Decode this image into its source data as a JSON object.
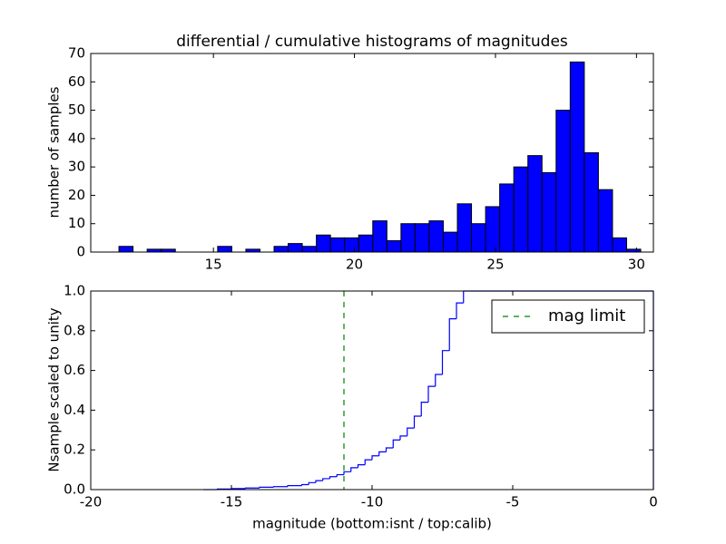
{
  "chart_data": [
    {
      "type": "histogram",
      "title": "differential / cumulative histograms of magnitudes",
      "ylabel": "number of samples",
      "bins": [
        11.65,
        12.15,
        12.65,
        13.15,
        13.65,
        14.15,
        14.65,
        15.15,
        15.65,
        16.15,
        16.65,
        17.15,
        17.65,
        18.15,
        18.65,
        19.15,
        19.65,
        20.15,
        20.65,
        21.15,
        21.65,
        22.15,
        22.65,
        23.15,
        23.65,
        24.15,
        24.65,
        25.15,
        25.65,
        26.15,
        26.65,
        27.15,
        27.65,
        28.15,
        28.65,
        29.15,
        29.65,
        30.15
      ],
      "values": [
        2,
        0,
        1,
        1,
        0,
        0,
        0,
        2,
        0,
        1,
        0,
        2,
        3,
        2,
        6,
        5,
        5,
        6,
        11,
        4,
        10,
        10,
        11,
        7,
        17,
        10,
        16,
        24,
        30,
        34,
        28,
        50,
        67,
        35,
        22,
        5,
        1
      ],
      "color": "#0000ff",
      "xlim": [
        10.65,
        30.6
      ],
      "xticks": [
        15,
        20,
        25,
        30
      ],
      "ylim": [
        0,
        70
      ],
      "yticks": [
        0,
        10,
        20,
        30,
        40,
        50,
        60,
        70
      ]
    },
    {
      "type": "step",
      "xlabel": "magnitude (bottom:isnt / top:calib)",
      "ylabel": "Nsample scaled to unity",
      "x": [
        -16,
        -15.5,
        -15,
        -14.5,
        -14,
        -13.5,
        -13,
        -12.5,
        -12.25,
        -12,
        -11.75,
        -11.5,
        -11.25,
        -11,
        -10.75,
        -10.5,
        -10.25,
        -10,
        -9.75,
        -9.5,
        -9.25,
        -9,
        -8.75,
        -8.5,
        -8.25,
        -8,
        -7.75,
        -7.5,
        -7.25,
        -7,
        -6.75,
        0
      ],
      "series": [
        {
          "values": [
            0.0,
            0.003,
            0.005,
            0.008,
            0.012,
            0.015,
            0.02,
            0.025,
            0.035,
            0.045,
            0.055,
            0.065,
            0.075,
            0.09,
            0.11,
            0.125,
            0.15,
            0.17,
            0.19,
            0.21,
            0.25,
            0.27,
            0.31,
            0.37,
            0.44,
            0.52,
            0.58,
            0.7,
            0.86,
            0.94,
            1.0,
            1.0
          ],
          "color": "#0000ff"
        }
      ],
      "vline": {
        "name": "mag limit",
        "x": -11,
        "color": "#008000"
      },
      "legend": "upper right",
      "xlim": [
        -20,
        0
      ],
      "xticks": [
        -20,
        -15,
        -10,
        -5,
        0
      ],
      "ylim": [
        0,
        1
      ],
      "yticks": [
        {
          "value": 0,
          "label": "0.0"
        },
        0.2,
        0.4,
        0.6,
        0.8,
        {
          "value": 1,
          "label": "1.0"
        }
      ]
    }
  ]
}
